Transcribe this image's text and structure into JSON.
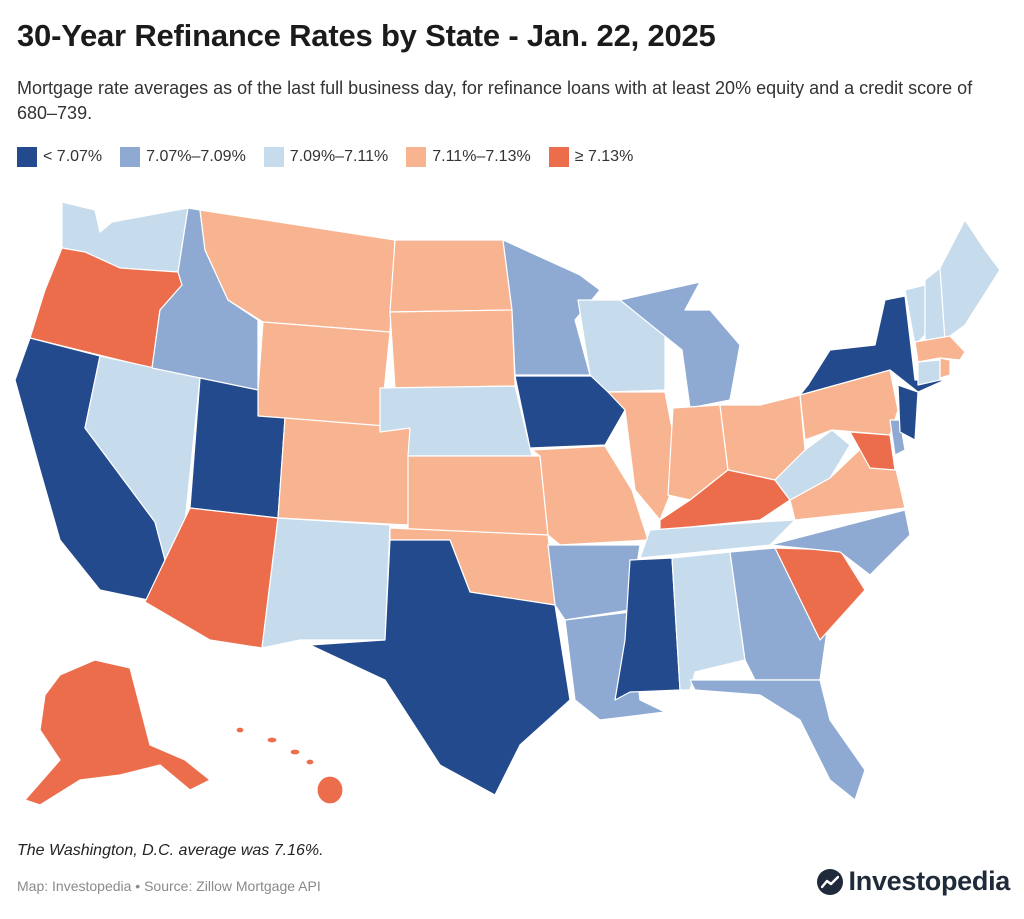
{
  "header": {
    "title": "30-Year Refinance Rates by State - Jan. 22, 2025",
    "subtitle": "Mortgage rate averages as of the last full business day, for refinance loans with at least 20% equity and a credit score of 680–739."
  },
  "legend": [
    {
      "label": "< 7.07%",
      "color": "#234a8c"
    },
    {
      "label": "7.07%–7.09%",
      "color": "#8eaad3"
    },
    {
      "label": "7.09%–7.11%",
      "color": "#c6dbec"
    },
    {
      "label": "7.11%–7.13%",
      "color": "#f8b491"
    },
    {
      "label": "≥ 7.13%",
      "color": "#ec6d4c"
    }
  ],
  "states": {
    "WA": "7.09%–7.11%",
    "OR": "≥ 7.13%",
    "CA": "< 7.07%",
    "NV": "7.09%–7.11%",
    "ID": "7.07%–7.09%",
    "MT": "7.11%–7.13%",
    "WY": "7.11%–7.13%",
    "UT": "< 7.07%",
    "AZ": "≥ 7.13%",
    "CO": "7.11%–7.13%",
    "NM": "7.09%–7.11%",
    "ND": "7.11%–7.13%",
    "SD": "7.11%–7.13%",
    "NE": "7.09%–7.11%",
    "KS": "7.11%–7.13%",
    "OK": "7.11%–7.13%",
    "TX": "< 7.07%",
    "MN": "7.07%–7.09%",
    "IA": "< 7.07%",
    "MO": "7.11%–7.13%",
    "AR": "7.07%–7.09%",
    "LA": "7.07%–7.09%",
    "WI": "7.09%–7.11%",
    "IL": "7.11%–7.13%",
    "MI": "7.07%–7.09%",
    "IN": "7.11%–7.13%",
    "OH": "7.11%–7.13%",
    "KY": "≥ 7.13%",
    "TN": "7.09%–7.11%",
    "MS": "< 7.07%",
    "AL": "7.09%–7.11%",
    "GA": "7.07%–7.09%",
    "FL": "7.07%–7.09%",
    "SC": "≥ 7.13%",
    "NC": "7.07%–7.09%",
    "VA": "7.11%–7.13%",
    "WV": "7.09%–7.11%",
    "PA": "7.11%–7.13%",
    "NY": "< 7.07%",
    "NJ": "< 7.07%",
    "DE": "7.07%–7.09%",
    "MD": "≥ 7.13%",
    "VT": "7.09%–7.11%",
    "NH": "7.09%–7.11%",
    "ME": "7.09%–7.11%",
    "MA": "7.11%–7.13%",
    "CT": "7.09%–7.11%",
    "RI": "7.11%–7.13%",
    "AK": "≥ 7.13%",
    "HI": "≥ 7.13%"
  },
  "footer": {
    "note": "The Washington, D.C. average was 7.16%.",
    "source": "Map: Investopedia • Source: Zillow Mortgage API",
    "brand": "Investopedia"
  },
  "icons": {
    "brand_mark": "investopedia-logo-icon"
  }
}
